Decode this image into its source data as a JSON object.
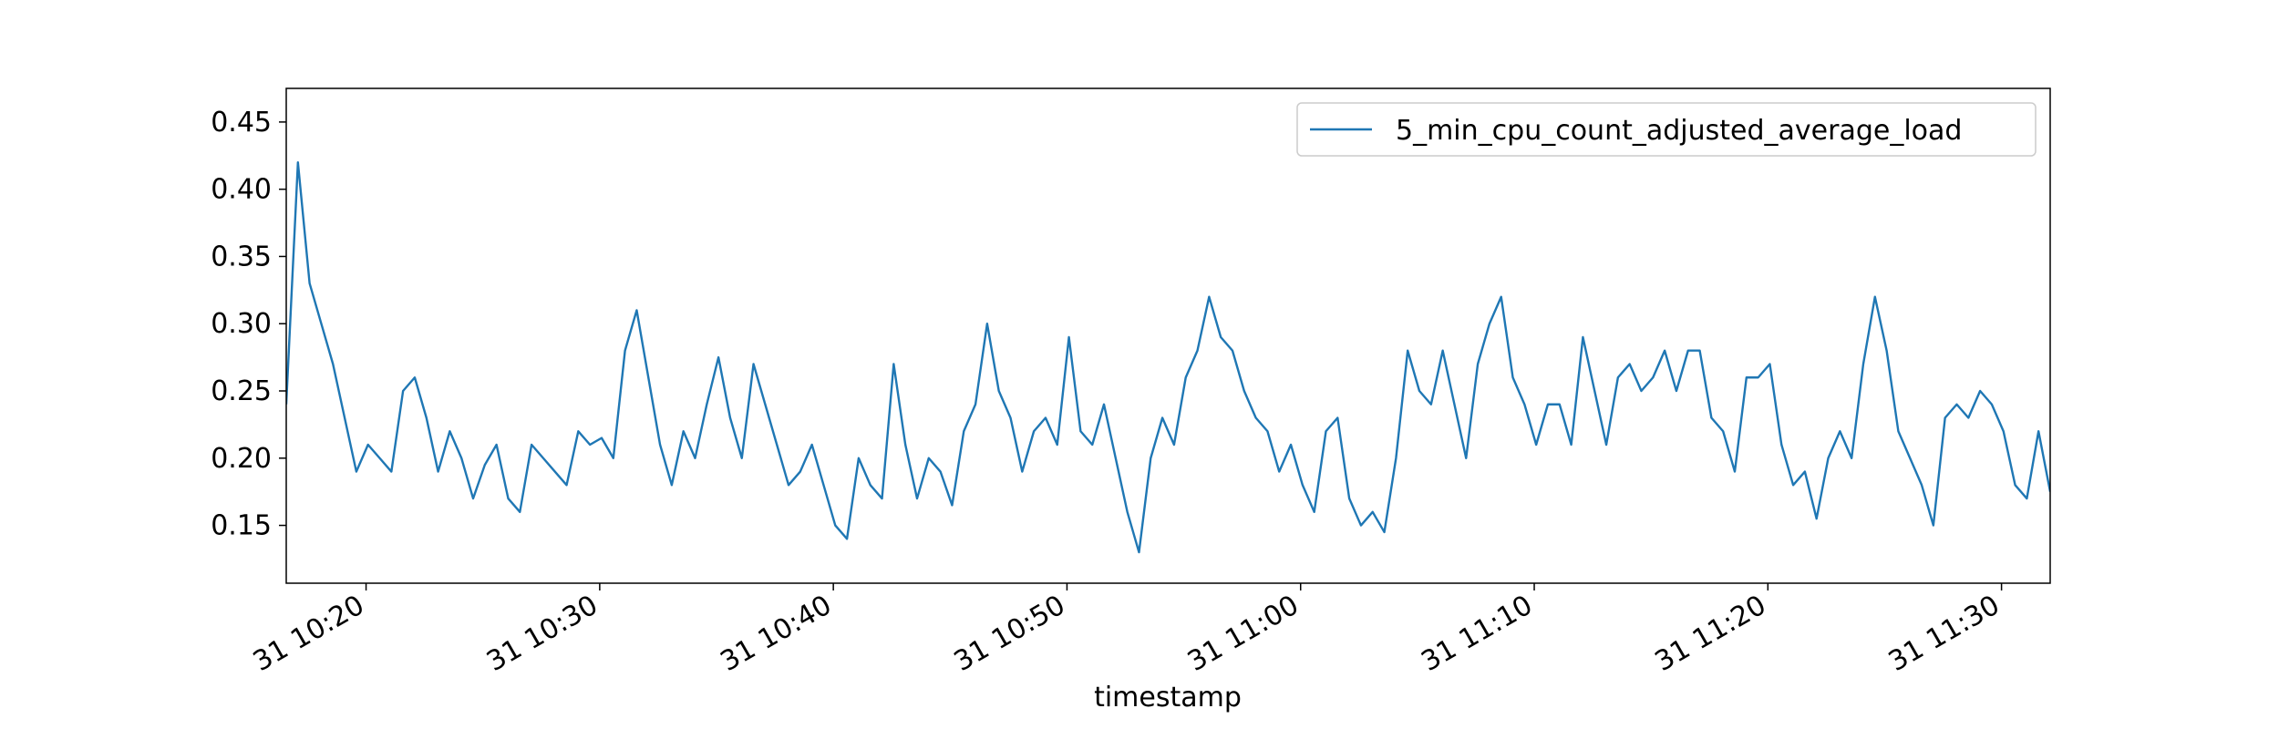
{
  "chart_data": {
    "type": "line",
    "x_label": "timestamp",
    "x": [
      "31 10:16:35",
      "31 10:17:05",
      "31 10:17:35",
      "31 10:18:05",
      "31 10:18:35",
      "31 10:19:05",
      "31 10:19:35",
      "31 10:20:05",
      "31 10:20:35",
      "31 10:21:05",
      "31 10:21:35",
      "31 10:22:05",
      "31 10:22:35",
      "31 10:23:05",
      "31 10:23:35",
      "31 10:24:05",
      "31 10:24:35",
      "31 10:25:05",
      "31 10:25:35",
      "31 10:26:05",
      "31 10:26:35",
      "31 10:27:05",
      "31 10:27:35",
      "31 10:28:05",
      "31 10:28:35",
      "31 10:29:05",
      "31 10:29:35",
      "31 10:30:05",
      "31 10:30:35",
      "31 10:31:05",
      "31 10:31:35",
      "31 10:32:05",
      "31 10:32:35",
      "31 10:33:05",
      "31 10:33:35",
      "31 10:34:05",
      "31 10:34:35",
      "31 10:35:05",
      "31 10:35:35",
      "31 10:36:05",
      "31 10:36:35",
      "31 10:37:05",
      "31 10:37:35",
      "31 10:38:05",
      "31 10:38:35",
      "31 10:39:05",
      "31 10:39:35",
      "31 10:40:05",
      "31 10:40:35",
      "31 10:41:05",
      "31 10:41:35",
      "31 10:42:05",
      "31 10:42:35",
      "31 10:43:05",
      "31 10:43:35",
      "31 10:44:05",
      "31 10:44:35",
      "31 10:45:05",
      "31 10:45:35",
      "31 10:46:05",
      "31 10:46:35",
      "31 10:47:05",
      "31 10:47:35",
      "31 10:48:05",
      "31 10:48:35",
      "31 10:49:05",
      "31 10:49:35",
      "31 10:50:05",
      "31 10:50:35",
      "31 10:51:05",
      "31 10:51:35",
      "31 10:52:05",
      "31 10:52:35",
      "31 10:53:05",
      "31 10:53:35",
      "31 10:54:05",
      "31 10:54:35",
      "31 10:55:05",
      "31 10:55:35",
      "31 10:56:05",
      "31 10:56:35",
      "31 10:57:05",
      "31 10:57:35",
      "31 10:58:05",
      "31 10:58:35",
      "31 10:59:05",
      "31 10:59:35",
      "31 11:00:05",
      "31 11:00:35",
      "31 11:01:05",
      "31 11:01:35",
      "31 11:02:05",
      "31 11:02:35",
      "31 11:03:05",
      "31 11:03:35",
      "31 11:04:05",
      "31 11:04:35",
      "31 11:05:05",
      "31 11:05:35",
      "31 11:06:05",
      "31 11:06:35",
      "31 11:07:05",
      "31 11:07:35",
      "31 11:08:05",
      "31 11:08:35",
      "31 11:09:05",
      "31 11:09:35",
      "31 11:10:05",
      "31 11:10:35",
      "31 11:11:05",
      "31 11:11:35",
      "31 11:12:05",
      "31 11:12:35",
      "31 11:13:05",
      "31 11:13:35",
      "31 11:14:05",
      "31 11:14:35",
      "31 11:15:05",
      "31 11:15:35",
      "31 11:16:05",
      "31 11:16:35",
      "31 11:17:05",
      "31 11:17:35",
      "31 11:18:05",
      "31 11:18:35",
      "31 11:19:05",
      "31 11:19:35",
      "31 11:20:05",
      "31 11:20:35",
      "31 11:21:05",
      "31 11:21:35",
      "31 11:22:05",
      "31 11:22:35",
      "31 11:23:05",
      "31 11:23:35",
      "31 11:24:05",
      "31 11:24:35",
      "31 11:25:05",
      "31 11:25:35",
      "31 11:26:05",
      "31 11:26:35",
      "31 11:27:05",
      "31 11:27:35",
      "31 11:28:05",
      "31 11:28:35",
      "31 11:29:05",
      "31 11:29:35",
      "31 11:30:05",
      "31 11:30:35",
      "31 11:31:05",
      "31 11:31:35",
      "31 11:32:05"
    ],
    "series": [
      {
        "name": "5_min_cpu_count_adjusted_average_load",
        "color": "#1f77b4",
        "values": [
          0.24,
          0.42,
          0.33,
          0.3,
          0.27,
          0.23,
          0.19,
          0.21,
          0.2,
          0.19,
          0.25,
          0.26,
          0.23,
          0.19,
          0.22,
          0.2,
          0.17,
          0.195,
          0.21,
          0.17,
          0.16,
          0.21,
          0.2,
          0.19,
          0.18,
          0.22,
          0.21,
          0.215,
          0.2,
          0.28,
          0.31,
          0.26,
          0.21,
          0.18,
          0.22,
          0.2,
          0.24,
          0.275,
          0.23,
          0.2,
          0.27,
          0.24,
          0.21,
          0.18,
          0.19,
          0.21,
          0.18,
          0.15,
          0.14,
          0.2,
          0.18,
          0.17,
          0.27,
          0.21,
          0.17,
          0.2,
          0.19,
          0.165,
          0.22,
          0.24,
          0.3,
          0.25,
          0.23,
          0.19,
          0.22,
          0.23,
          0.21,
          0.29,
          0.22,
          0.21,
          0.24,
          0.2,
          0.16,
          0.13,
          0.2,
          0.23,
          0.21,
          0.26,
          0.28,
          0.32,
          0.29,
          0.28,
          0.25,
          0.23,
          0.22,
          0.19,
          0.21,
          0.18,
          0.16,
          0.22,
          0.23,
          0.17,
          0.15,
          0.16,
          0.145,
          0.2,
          0.28,
          0.25,
          0.24,
          0.28,
          0.24,
          0.2,
          0.27,
          0.3,
          0.32,
          0.26,
          0.24,
          0.21,
          0.24,
          0.24,
          0.21,
          0.29,
          0.25,
          0.21,
          0.26,
          0.27,
          0.25,
          0.26,
          0.28,
          0.25,
          0.28,
          0.28,
          0.23,
          0.22,
          0.19,
          0.26,
          0.26,
          0.27,
          0.21,
          0.18,
          0.19,
          0.155,
          0.2,
          0.22,
          0.2,
          0.27,
          0.32,
          0.28,
          0.22,
          0.2,
          0.18,
          0.15,
          0.23,
          0.24,
          0.23,
          0.25,
          0.24,
          0.22,
          0.18,
          0.17,
          0.22,
          0.175
        ]
      }
    ],
    "xlim": [
      "31 10:16:35",
      "31 11:32:05"
    ],
    "xticks": [
      "31 10:20",
      "31 10:30",
      "31 10:40",
      "31 10:50",
      "31 11:00",
      "31 11:10",
      "31 11:20",
      "31 11:30"
    ],
    "ylim": [
      0.107,
      0.475
    ],
    "yticks": [
      0.15,
      {
        "value": 0.2,
        "label": "0.20"
      },
      0.25,
      {
        "value": 0.3,
        "label": "0.30"
      },
      0.35,
      {
        "value": 0.4,
        "label": "0.40"
      },
      0.45
    ],
    "grid": false,
    "legend": "upper right"
  }
}
